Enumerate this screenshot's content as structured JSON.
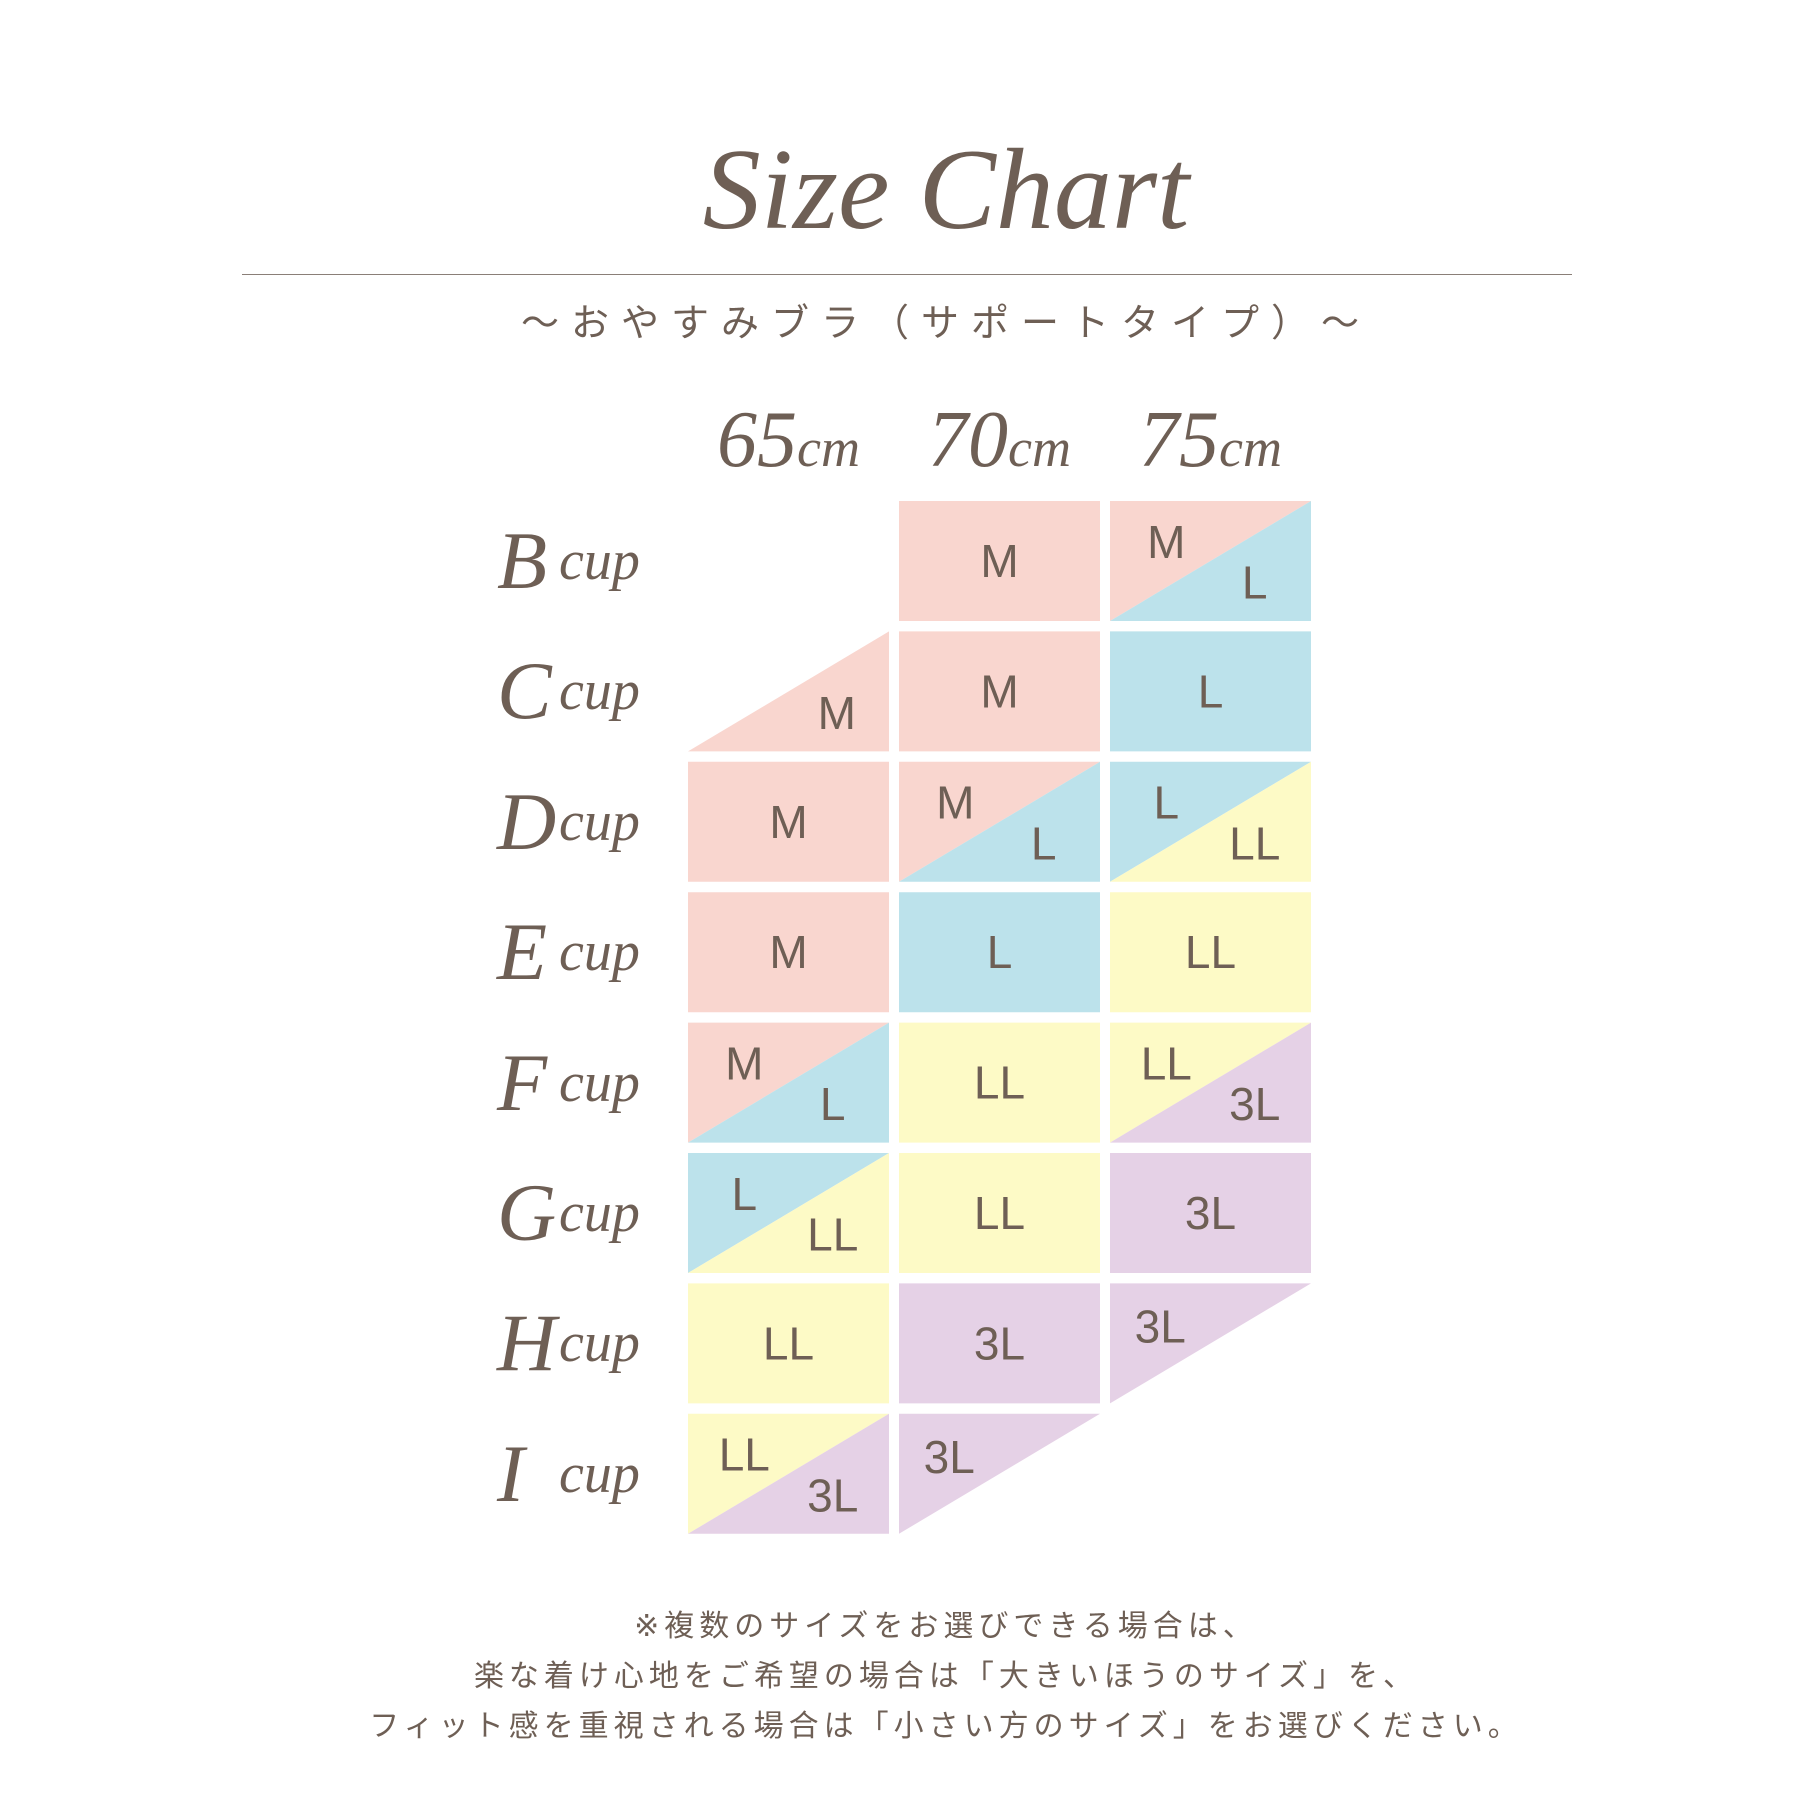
{
  "title": "Size Chart",
  "subtitle": "～おやすみブラ（サポートタイプ）～",
  "colors": {
    "M": "#f9d6cf",
    "L": "#bce2eb",
    "LL": "#fdfac6",
    "3L": "#e5d1e6",
    "text": "#6e5f55"
  },
  "columns": [
    {
      "num": "65",
      "unit": "cm"
    },
    {
      "num": "70",
      "unit": "cm"
    },
    {
      "num": "75",
      "unit": "cm"
    }
  ],
  "rows": [
    {
      "letter": "B",
      "unit": "cup",
      "cells": [
        null,
        {
          "type": "full",
          "a": "M"
        },
        {
          "type": "split",
          "a": "M",
          "b": "L"
        }
      ]
    },
    {
      "letter": "C",
      "unit": "cup",
      "cells": [
        {
          "type": "lower",
          "b": "M"
        },
        {
          "type": "full",
          "a": "M"
        },
        {
          "type": "full",
          "a": "L"
        }
      ]
    },
    {
      "letter": "D",
      "unit": "cup",
      "cells": [
        {
          "type": "full",
          "a": "M"
        },
        {
          "type": "split",
          "a": "M",
          "b": "L"
        },
        {
          "type": "split",
          "a": "L",
          "b": "LL"
        }
      ]
    },
    {
      "letter": "E",
      "unit": "cup",
      "cells": [
        {
          "type": "full",
          "a": "M"
        },
        {
          "type": "full",
          "a": "L"
        },
        {
          "type": "full",
          "a": "LL"
        }
      ]
    },
    {
      "letter": "F",
      "unit": "cup",
      "cells": [
        {
          "type": "split",
          "a": "M",
          "b": "L"
        },
        {
          "type": "full",
          "a": "LL"
        },
        {
          "type": "split",
          "a": "LL",
          "b": "3L"
        }
      ]
    },
    {
      "letter": "G",
      "unit": "cup",
      "cells": [
        {
          "type": "split",
          "a": "L",
          "b": "LL"
        },
        {
          "type": "full",
          "a": "LL"
        },
        {
          "type": "full",
          "a": "3L"
        }
      ]
    },
    {
      "letter": "H",
      "unit": "cup",
      "cells": [
        {
          "type": "full",
          "a": "LL"
        },
        {
          "type": "full",
          "a": "3L"
        },
        {
          "type": "upper",
          "a": "3L"
        }
      ]
    },
    {
      "letter": "I",
      "unit": "cup",
      "cells": [
        {
          "type": "split",
          "a": "LL",
          "b": "3L"
        },
        {
          "type": "upper",
          "a": "3L"
        },
        null
      ]
    }
  ],
  "footnote": [
    "※複数のサイズをお選びできる場合は、",
    "楽な着け心地をご希望の場合は「大きいほうのサイズ」を、",
    "フィット感を重視される場合は「小さい方のサイズ」をお選びください。"
  ]
}
